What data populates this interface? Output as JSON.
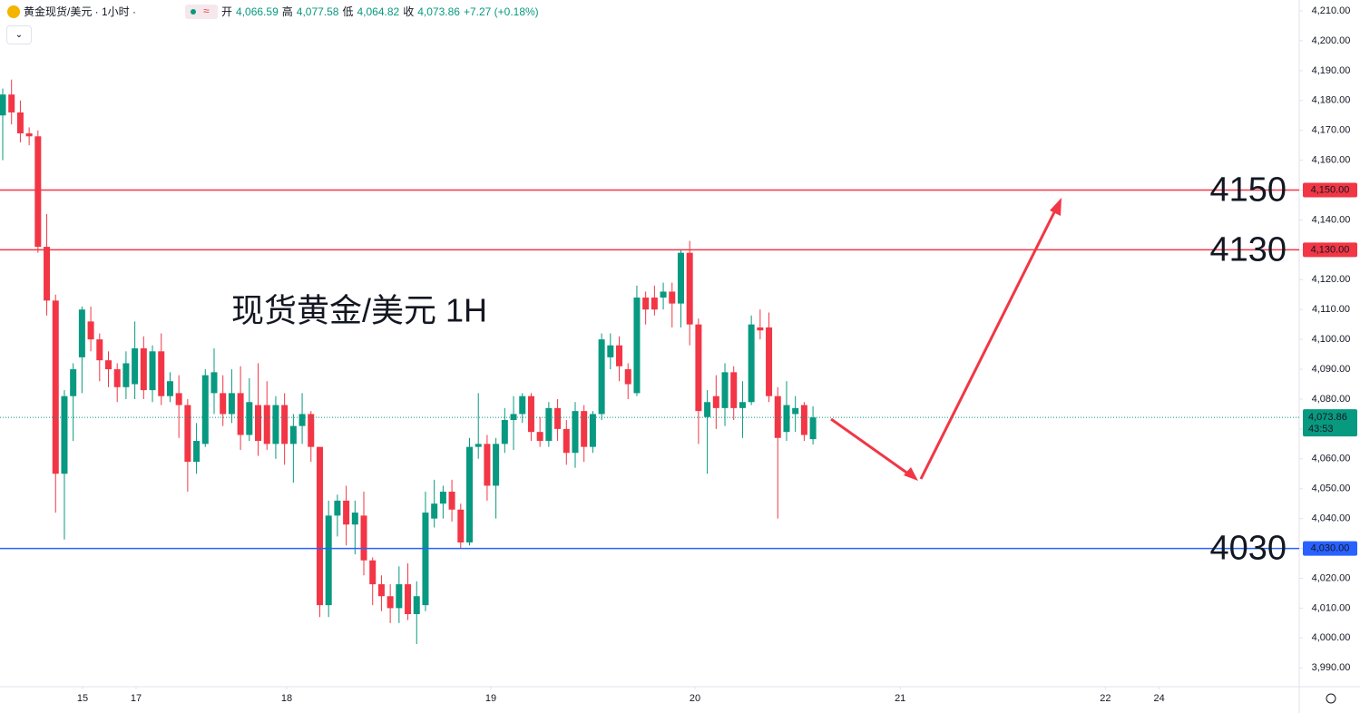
{
  "header": {
    "symbol": "黄金现货/美元 · 1小时 ·",
    "ohlc": [
      {
        "label": "开",
        "value": "4,066.59"
      },
      {
        "label": "高",
        "value": "4,077.58"
      },
      {
        "label": "低",
        "value": "4,064.82"
      },
      {
        "label": "收",
        "value": "4,073.86"
      }
    ],
    "change": "+7.27 (+0.18%)"
  },
  "chart_data": {
    "type": "candlestick",
    "annotation": "现货黄金/美元 1H",
    "up_color": "#089981",
    "down_color": "#f23645",
    "open": [
      4175,
      4182,
      4176,
      4169,
      4168,
      4131,
      4113,
      4055,
      4081,
      4094,
      4106,
      4100,
      4093,
      4090,
      4084,
      4085,
      4097,
      4083,
      4096,
      4081,
      4082,
      4078,
      4059,
      4065,
      4082,
      4082,
      4075,
      4082,
      4068,
      4078,
      4078,
      4065,
      4078,
      4065,
      4071,
      4075,
      4064,
      4011,
      4041,
      4046,
      4038,
      4041,
      4026,
      4018,
      4014,
      4010,
      4018,
      4008,
      4011,
      4040,
      4045,
      4049,
      4043,
      4032,
      4064,
      4065,
      4051,
      4065,
      4073,
      4075,
      4081,
      4069,
      4066,
      4077,
      4070,
      4062,
      4076,
      4064,
      4075,
      4094,
      4098,
      4090,
      4082,
      4114,
      4114,
      4114,
      4116,
      4112,
      4129,
      4105,
      4074,
      4081,
      4077,
      4089,
      4077,
      4079,
      4104,
      4104,
      4081,
      4069,
      4075,
      4078,
      4066.59
    ],
    "high": [
      4184,
      4187,
      4180,
      4171,
      4170,
      4142,
      4115,
      4083,
      4092,
      4111,
      4111,
      4102,
      4096,
      4092,
      4096,
      4106,
      4101,
      4098,
      4102,
      4089,
      4088,
      4080,
      4072,
      4090,
      4097,
      4088,
      4090,
      4091,
      4087,
      4092,
      4086,
      4081,
      4082,
      4075,
      4082,
      4076,
      4064,
      4046,
      4048,
      4051,
      4046,
      4049,
      4027,
      4021,
      4018,
      4024,
      4025,
      4019,
      4049,
      4053,
      4051,
      4053,
      4045,
      4067,
      4082,
      4068,
      4067,
      4077,
      4081,
      4082,
      4082,
      4074,
      4079,
      4080,
      4073,
      4079,
      4078,
      4076,
      4102,
      4102,
      4101,
      4092,
      4118,
      4116,
      4118,
      4119,
      4119,
      4130,
      4133,
      4107,
      4083,
      4088,
      4092,
      4091,
      4086,
      4108,
      4110,
      4109,
      4084,
      4086,
      4081,
      4079,
      4077.58
    ],
    "low": [
      4160,
      4172,
      4166,
      4165,
      4129,
      4108,
      4042,
      4033,
      4066,
      4082,
      4096,
      4086,
      4084,
      4079,
      4080,
      4080,
      4080,
      4079,
      4078,
      4079,
      4067,
      4049,
      4055,
      4064,
      4075,
      4071,
      4072,
      4063,
      4066,
      4061,
      4063,
      4060,
      4058,
      4052,
      4065,
      4059,
      4007,
      4007,
      4034,
      4031,
      4028,
      4021,
      4011,
      4009,
      4005,
      4005,
      4006,
      3998,
      4009,
      4037,
      4040,
      4039,
      4030,
      4031,
      4060,
      4046,
      4040,
      4062,
      4063,
      4072,
      4066,
      4064,
      4064,
      4066,
      4058,
      4057,
      4059,
      4062,
      4073,
      4090,
      4086,
      4080,
      4081,
      4105,
      4108,
      4110,
      4104,
      4104,
      4098,
      4065,
      4055,
      4070,
      4071,
      4073,
      4067,
      4078,
      4100,
      4079,
      4040,
      4066,
      4069,
      4066,
      4064.82
    ],
    "close": [
      4182,
      4176,
      4169,
      4168,
      4131,
      4113,
      4055,
      4081,
      4090,
      4110,
      4100,
      4093,
      4090,
      4084,
      4092,
      4097,
      4083,
      4096,
      4081,
      4086,
      4078,
      4059,
      4066,
      4088,
      4089,
      4075,
      4082,
      4068,
      4079,
      4066,
      4065,
      4078,
      4065,
      4071,
      4075,
      4064,
      4011,
      4041,
      4046,
      4038,
      4042,
      4026,
      4018,
      4014,
      4010,
      4018,
      4008,
      4014,
      4042,
      4045,
      4049,
      4043,
      4032,
      4064,
      4065,
      4051,
      4065,
      4073,
      4075,
      4081,
      4069,
      4066,
      4077,
      4070,
      4062,
      4076,
      4064,
      4075,
      4100,
      4098,
      4091,
      4085,
      4114,
      4110,
      4110,
      4116,
      4112,
      4129,
      4105,
      4076,
      4079,
      4077,
      4089,
      4077,
      4079,
      4105,
      4103,
      4081,
      4067,
      4078,
      4077,
      4068,
      4073.86
    ],
    "ylim": [
      3984,
      4213.65
    ],
    "yticks": [
      {
        "value": 3990,
        "label": "3,990.00"
      },
      {
        "value": 4000,
        "label": "4,000.00"
      },
      {
        "value": 4010,
        "label": "4,010.00"
      },
      {
        "value": 4020,
        "label": "4,020.00"
      },
      {
        "value": 4030,
        "label": "4,030.00"
      },
      {
        "value": 4040,
        "label": "4,040.00"
      },
      {
        "value": 4050,
        "label": "4,050.00"
      },
      {
        "value": 4060,
        "label": "4,060.00"
      },
      {
        "value": 4070,
        "label": "4,070.00"
      },
      {
        "value": 4080,
        "label": "4,080.00"
      },
      {
        "value": 4090,
        "label": "4,090.00"
      },
      {
        "value": 4100,
        "label": "4,100.00"
      },
      {
        "value": 4110,
        "label": "4,110.00"
      },
      {
        "value": 4120,
        "label": "4,120.00"
      },
      {
        "value": 4130,
        "label": "4,130.00"
      },
      {
        "value": 4140,
        "label": "4,140.00"
      },
      {
        "value": 4150,
        "label": "4,150.00"
      },
      {
        "value": 4160,
        "label": "4,160.00"
      },
      {
        "value": 4170,
        "label": "4,170.00"
      },
      {
        "value": 4180,
        "label": "4,180.00"
      },
      {
        "value": 4190,
        "label": "4,190.00"
      },
      {
        "value": 4200,
        "label": "4,200.00"
      },
      {
        "value": 4210,
        "label": "4,210.00"
      }
    ],
    "xlim": [
      -0.31,
      147
    ],
    "xticks": [
      {
        "value": 9.07,
        "label": "15"
      },
      {
        "value": 15.14,
        "label": "17"
      },
      {
        "value": 32.24,
        "label": "18"
      },
      {
        "value": 55.42,
        "label": "19"
      },
      {
        "value": 78.6,
        "label": "20"
      },
      {
        "value": 101.9,
        "label": "21"
      },
      {
        "value": 125.2,
        "label": "22"
      },
      {
        "value": 131.3,
        "label": "24"
      }
    ],
    "levels": [
      {
        "value": 4150,
        "label": "4,150.00",
        "color": "#f23645"
      },
      {
        "value": 4130,
        "label": "4,130.00",
        "color": "#f23645"
      },
      {
        "value": 4030,
        "label": "4,030.00",
        "color": "#2962ff"
      }
    ],
    "last_price": {
      "value": 4073.86,
      "label": "4,073.86",
      "countdown": "43:53",
      "color": "#089981"
    }
  }
}
